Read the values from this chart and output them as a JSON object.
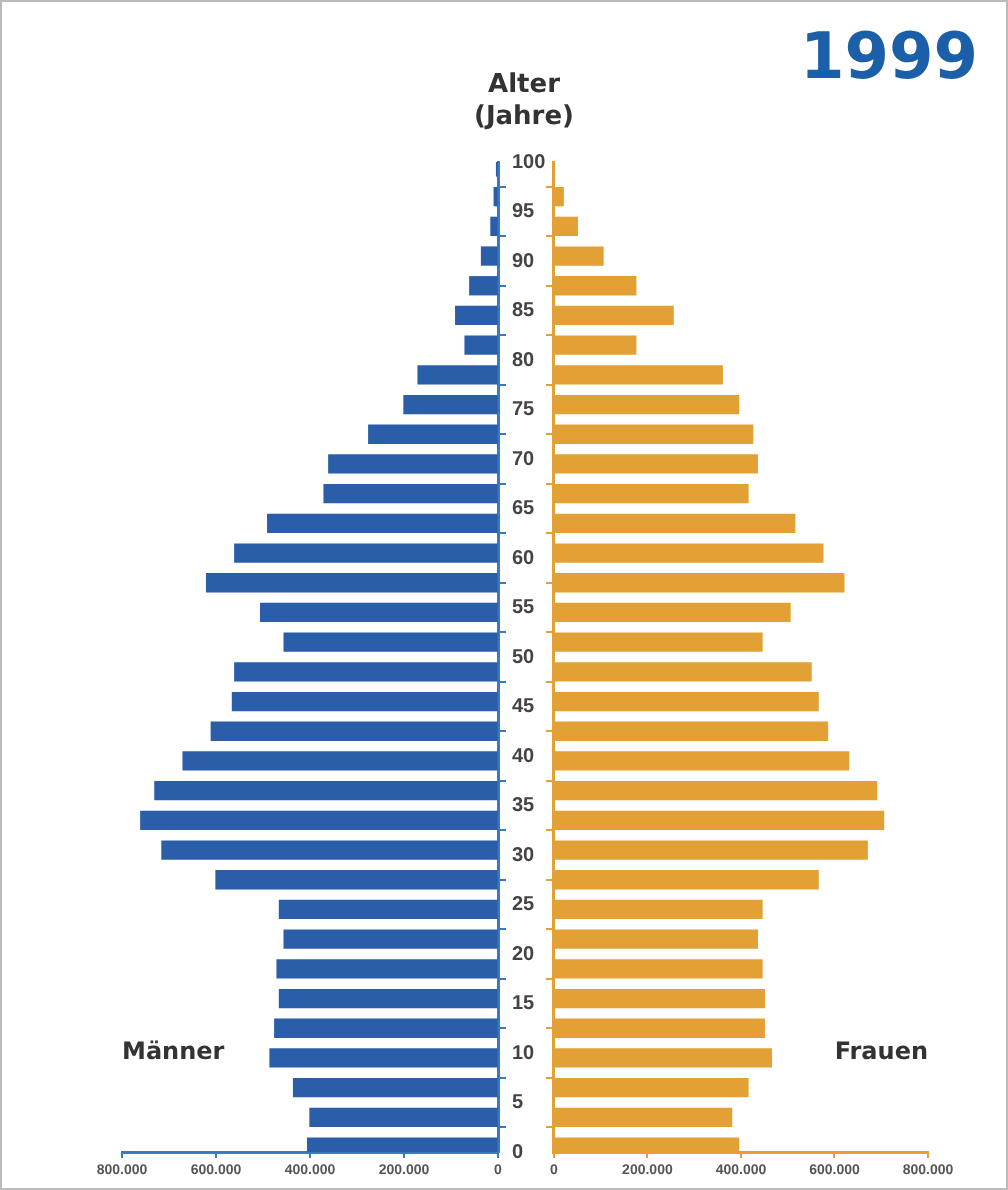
{
  "chart_data": [
    {
      "type": "bar",
      "orientation": "horizontal",
      "ylabel": "Alter (Jahre)",
      "x": [
        0.5,
        3.5,
        6.5,
        9.5,
        12.5,
        15.5,
        18.5,
        21.5,
        24.5,
        27.5,
        30.5,
        33.5,
        36.5,
        39.5,
        42.5,
        45.5,
        48.5,
        51.5,
        54.5,
        57.5,
        60.5,
        63.5,
        66.5,
        69.5,
        72.5,
        75.5,
        78.5,
        81.5,
        84.5,
        87.5,
        90.5,
        93.5,
        96.5,
        99.5
      ],
      "series": [
        {
          "name": "Männer",
          "color": "#2a5ea8",
          "values": [
            405000,
            400000,
            435000,
            485000,
            475000,
            465000,
            470000,
            455000,
            465000,
            600000,
            715000,
            760000,
            730000,
            670000,
            610000,
            565000,
            560000,
            455000,
            505000,
            620000,
            560000,
            490000,
            370000,
            360000,
            275000,
            200000,
            170000,
            70000,
            90000,
            60000,
            35000,
            15000,
            8000,
            3000
          ]
        }
      ],
      "xlim": [
        800000,
        0
      ],
      "xticks": [
        {
          "value": 800000,
          "label": "800.000"
        },
        {
          "value": 600000,
          "label": "600.000"
        },
        {
          "value": 400000,
          "label": "400.000"
        },
        {
          "value": 200000,
          "label": "200.000"
        },
        0
      ],
      "ylim": [
        0,
        100
      ],
      "yticks": [
        0,
        5,
        10,
        15,
        20,
        25,
        30,
        35,
        40,
        45,
        50,
        55,
        60,
        65,
        70,
        75,
        80,
        85,
        90,
        95,
        100
      ]
    },
    {
      "type": "bar",
      "orientation": "horizontal",
      "title": "1999",
      "series": [
        {
          "name": "Frauen",
          "color": "#e3a035",
          "x": [
            0.5,
            3.5,
            6.5,
            9.5,
            12.5,
            15.5,
            18.5,
            21.5,
            24.5,
            27.5,
            30.5,
            33.5,
            36.5,
            39.5,
            42.5,
            45.5,
            48.5,
            51.5,
            54.5,
            57.5,
            60.5,
            63.5,
            66.5,
            69.5,
            72.5,
            75.5,
            78.5,
            81.5,
            84.5,
            87.5,
            90.5,
            93.5,
            96.5
          ],
          "values": [
            395000,
            380000,
            415000,
            465000,
            450000,
            450000,
            445000,
            435000,
            445000,
            565000,
            670000,
            705000,
            690000,
            630000,
            585000,
            565000,
            550000,
            445000,
            505000,
            620000,
            575000,
            515000,
            415000,
            435000,
            425000,
            395000,
            360000,
            175000,
            255000,
            175000,
            105000,
            50000,
            20000
          ]
        }
      ],
      "xlim": [
        0,
        800000
      ],
      "xticks": [
        0,
        {
          "value": 200000,
          "label": "200.000"
        },
        {
          "value": 400000,
          "label": "400.000"
        },
        {
          "value": 600000,
          "label": "600.000"
        },
        {
          "value": 800000,
          "label": "800.000"
        }
      ],
      "ylim": [
        0,
        100
      ],
      "yticks": [
        0,
        5,
        10,
        15,
        20,
        25,
        30,
        35,
        40,
        45,
        50,
        55,
        60,
        65,
        70,
        75,
        80,
        85,
        90,
        95,
        100
      ],
      "tick_labels": "x"
    }
  ]
}
